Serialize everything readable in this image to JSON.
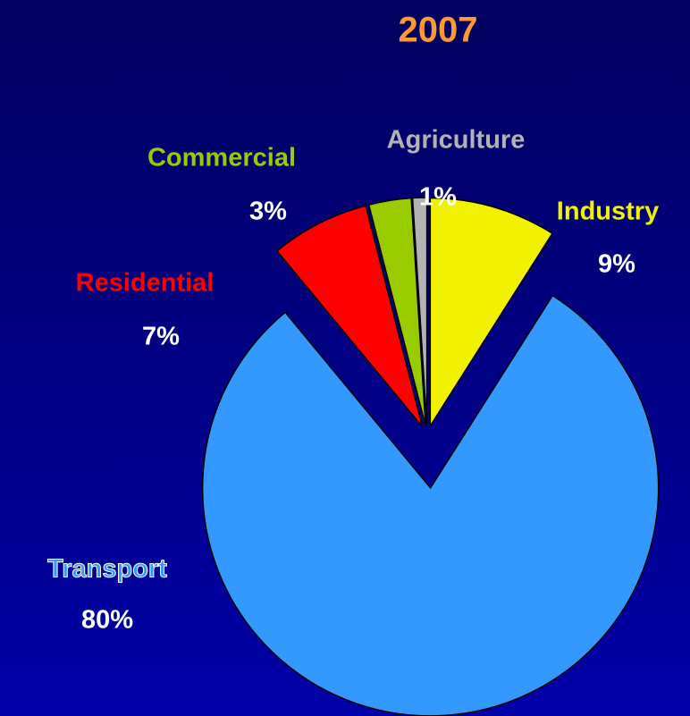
{
  "chart_data": {
    "type": "pie",
    "title": "2007",
    "categories": [
      "Industry",
      "Transport",
      "Residential",
      "Commercial",
      "Agriculture"
    ],
    "values": [
      9,
      80,
      7,
      3,
      1
    ],
    "value_labels": [
      "9%",
      "80%",
      "7%",
      "3%",
      "1%"
    ],
    "colors": [
      "#f2f200",
      "#3399ff",
      "#ff0000",
      "#99cc00",
      "#b3b3b3"
    ]
  }
}
